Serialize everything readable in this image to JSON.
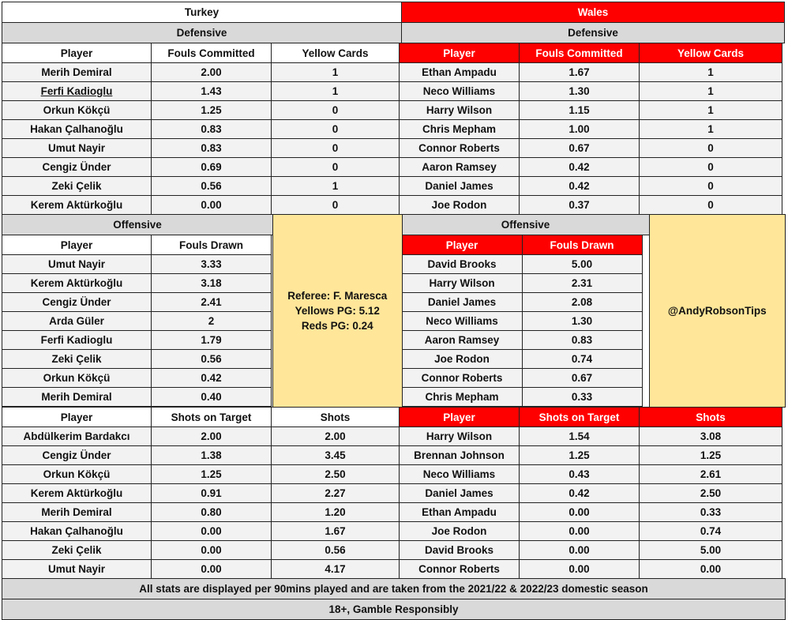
{
  "teams": {
    "left": "Turkey",
    "right": "Wales"
  },
  "sections": {
    "defensive": "Defensive",
    "offensive": "Offensive"
  },
  "headers": {
    "player": "Player",
    "fouls_committed": "Fouls Committed",
    "yellow_cards": "Yellow Cards",
    "fouls_drawn": "Fouls Drawn",
    "shots_on_target": "Shots on Target",
    "shots": "Shots"
  },
  "turkey_defensive": [
    [
      "Merih Demiral",
      "2.00",
      "1"
    ],
    [
      "Ferfi Kadioglu",
      "1.43",
      "1"
    ],
    [
      "Orkun Kökçü",
      "1.25",
      "0"
    ],
    [
      "Hakan Çalhanoğlu",
      "0.83",
      "0"
    ],
    [
      "Umut Nayir",
      "0.83",
      "0"
    ],
    [
      "Cengiz Ünder",
      "0.69",
      "0"
    ],
    [
      "Zeki Çelik",
      "0.56",
      "1"
    ],
    [
      "Kerem Aktürkoğlu",
      "0.00",
      "0"
    ]
  ],
  "wales_defensive": [
    [
      "Ethan Ampadu",
      "1.67",
      "1"
    ],
    [
      "Neco Williams",
      "1.30",
      "1"
    ],
    [
      "Harry Wilson",
      "1.15",
      "1"
    ],
    [
      "Chris Mepham",
      "1.00",
      "1"
    ],
    [
      "Connor Roberts",
      "0.67",
      "0"
    ],
    [
      "Aaron Ramsey",
      "0.42",
      "0"
    ],
    [
      "Daniel James",
      "0.42",
      "0"
    ],
    [
      "Joe Rodon",
      "0.37",
      "0"
    ]
  ],
  "turkey_offensive": [
    [
      "Umut Nayir",
      "3.33"
    ],
    [
      "Kerem Aktürkoğlu",
      "3.18"
    ],
    [
      "Cengiz Ünder",
      "2.41"
    ],
    [
      "Arda Güler",
      "2"
    ],
    [
      "Ferfi Kadioglu",
      "1.79"
    ],
    [
      "Zeki Çelik",
      "0.56"
    ],
    [
      "Orkun Kökçü",
      "0.42"
    ],
    [
      "Merih Demiral",
      "0.40"
    ]
  ],
  "wales_offensive": [
    [
      "David Brooks",
      "5.00"
    ],
    [
      "Harry Wilson",
      "2.31"
    ],
    [
      "Daniel James",
      "2.08"
    ],
    [
      "Neco Williams",
      "1.30"
    ],
    [
      "Aaron Ramsey",
      "0.83"
    ],
    [
      "Joe Rodon",
      "0.74"
    ],
    [
      "Connor Roberts",
      "0.67"
    ],
    [
      "Chris Mepham",
      "0.33"
    ]
  ],
  "referee": {
    "line1": "Referee: F. Maresca",
    "line2": "Yellows PG: 5.12",
    "line3": "Reds PG: 0.24"
  },
  "handle": "@AndyRobsonTips",
  "turkey_shots": [
    [
      "Abdülkerim Bardakcı",
      "2.00",
      "2.00"
    ],
    [
      "Cengiz Ünder",
      "1.38",
      "3.45"
    ],
    [
      "Orkun Kökçü",
      "1.25",
      "2.50"
    ],
    [
      "Kerem Aktürkoğlu",
      "0.91",
      "2.27"
    ],
    [
      "Merih Demiral",
      "0.80",
      "1.20"
    ],
    [
      "Hakan Çalhanoğlu",
      "0.00",
      "1.67"
    ],
    [
      "Zeki Çelik",
      "0.00",
      "0.56"
    ],
    [
      "Umut Nayir",
      "0.00",
      "4.17"
    ]
  ],
  "wales_shots": [
    [
      "Harry Wilson",
      "1.54",
      "3.08"
    ],
    [
      "Brennan Johnson",
      "1.25",
      "1.25"
    ],
    [
      "Neco Williams",
      "0.43",
      "2.61"
    ],
    [
      "Daniel James",
      "0.42",
      "2.50"
    ],
    [
      "Ethan Ampadu",
      "0.00",
      "0.33"
    ],
    [
      "Joe Rodon",
      "0.00",
      "0.74"
    ],
    [
      "David Brooks",
      "0.00",
      "5.00"
    ],
    [
      "Connor Roberts",
      "0.00",
      "0.00"
    ]
  ],
  "footer": {
    "note": "All stats are displayed per 90mins played and are taken from the 2021/22 & 2022/23 domestic season",
    "disclaimer": "18+, Gamble Responsibly"
  },
  "colors": {
    "wales_red": "#ff0000",
    "header_grey": "#d9d9d9",
    "row_grey": "#f2f2f2",
    "note_yellow": "#ffe699"
  }
}
